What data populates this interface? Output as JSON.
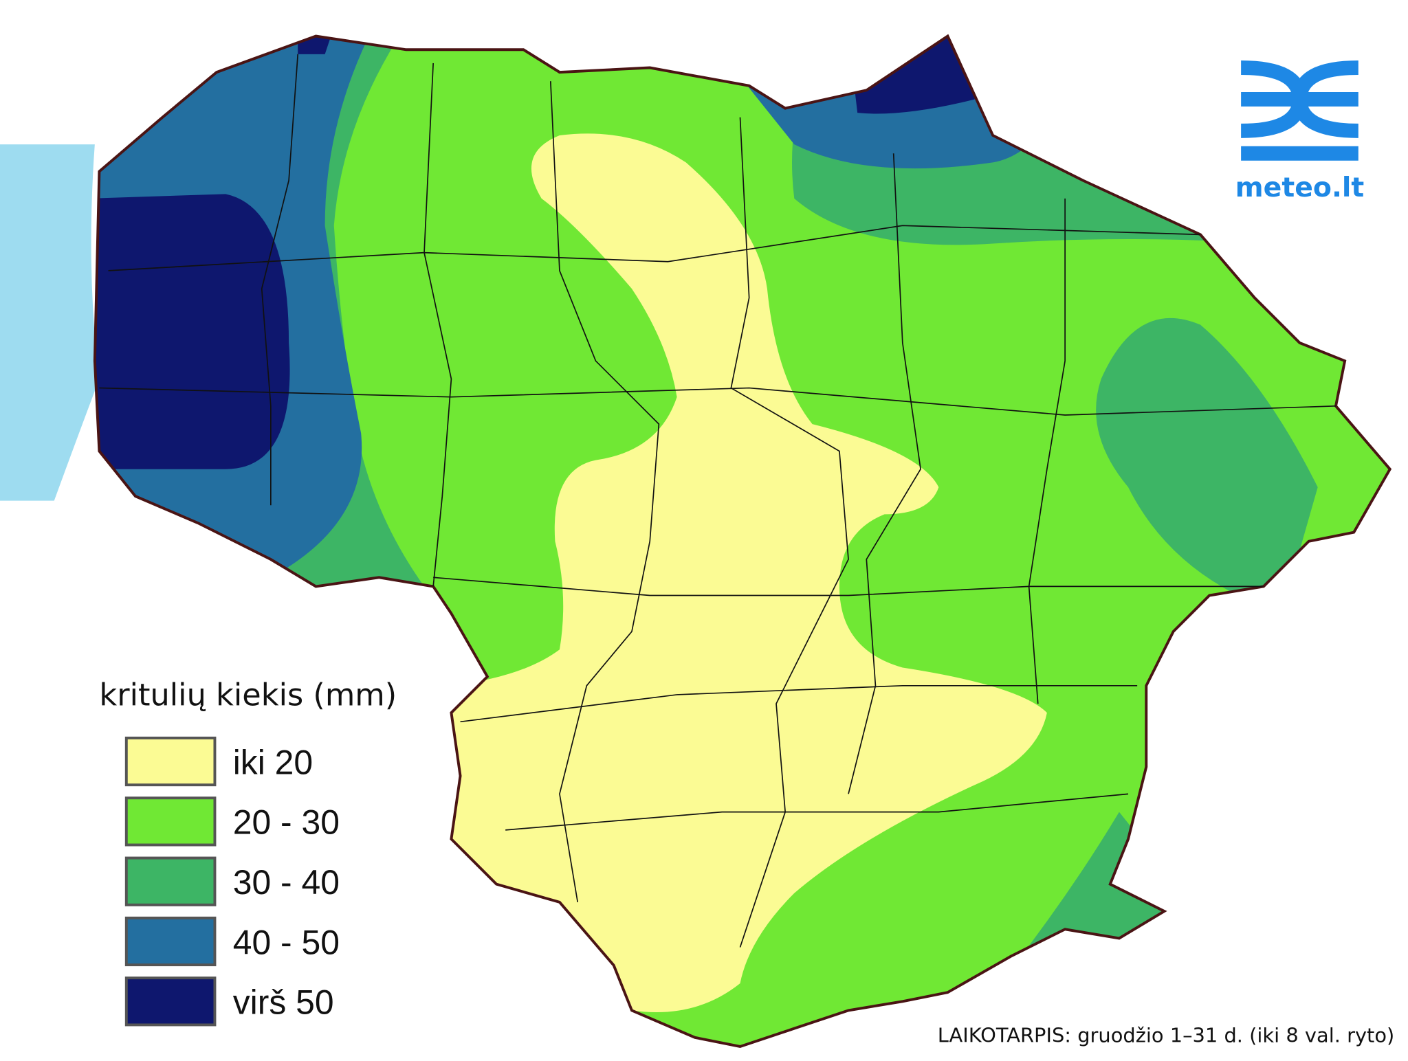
{
  "legend": {
    "title": "kritulių kiekis (mm)",
    "items": [
      {
        "label": "iki 20",
        "color": "#fbfb94"
      },
      {
        "label": "20 - 30",
        "color": "#70e834"
      },
      {
        "label": "30 - 40",
        "color": "#3db565"
      },
      {
        "label": "40 - 50",
        "color": "#236fa0"
      },
      {
        "label": "virš 50",
        "color": "#0e176e"
      }
    ]
  },
  "logo": {
    "text": "meteo.lt"
  },
  "footer": "LAIKOTARPIS: gruodžio 1–31 d. (iki 8 val. ryto)"
}
